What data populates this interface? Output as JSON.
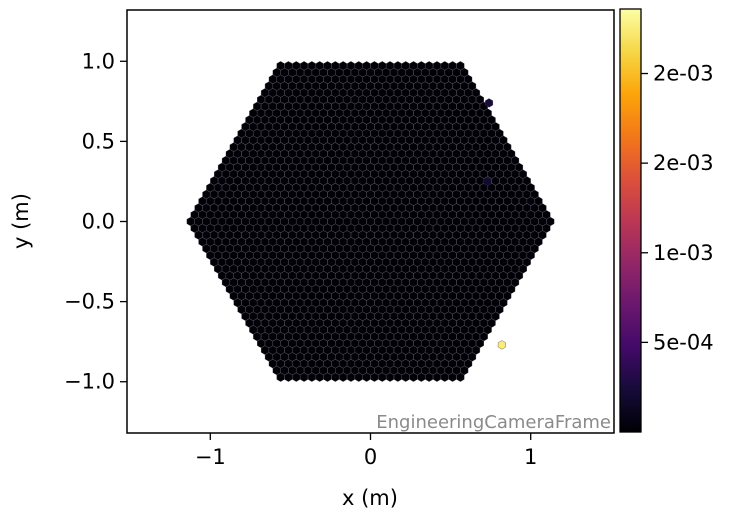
{
  "chart_data": {
    "type": "heatmap",
    "subtype": "hexagonal camera image",
    "frame_label": "EngineeringCameraFrame",
    "xlabel": "x  (m)",
    "ylabel": "y  (m)",
    "xlim": [
      -1.52,
      1.52
    ],
    "ylim": [
      -1.32,
      1.32
    ],
    "x_ticks": [
      {
        "value": -1,
        "label": "−1"
      },
      {
        "value": 0,
        "label": "0"
      },
      {
        "value": 1,
        "label": "1"
      }
    ],
    "y_ticks": [
      {
        "value": 1.0,
        "label": "1.0"
      },
      {
        "value": 0.5,
        "label": "0.5"
      },
      {
        "value": 0.0,
        "label": "0.0"
      },
      {
        "value": -0.5,
        "label": "−0.5"
      },
      {
        "value": -1.0,
        "label": "−1.0"
      }
    ],
    "camera_shape": "hexagon",
    "camera_outer_radius": 1.15,
    "pixel_pitch": 0.0488,
    "background_pixel_value": 1e-05,
    "highlighted_pixels": [
      {
        "x": 0.82,
        "y": -0.77,
        "value": 0.00225
      },
      {
        "x": 0.74,
        "y": 0.74,
        "value": 0.00025
      },
      {
        "x": 0.73,
        "y": 0.25,
        "value": 0.0002
      }
    ],
    "colorbar": {
      "colormap": "inferno",
      "vmin": 0.0,
      "vmax": 0.00236,
      "ticks": [
        {
          "value": 0.0005,
          "label": "5e-04"
        },
        {
          "value": 0.001,
          "label": "1e-03"
        },
        {
          "value": 0.0015,
          "label": "2e-03"
        },
        {
          "value": 0.002,
          "label": "2e-03"
        }
      ]
    },
    "colors": {
      "pixel_fill": "#000004",
      "pixel_edge": "#3a3a44",
      "frame_label": "#8a8a8a"
    }
  }
}
